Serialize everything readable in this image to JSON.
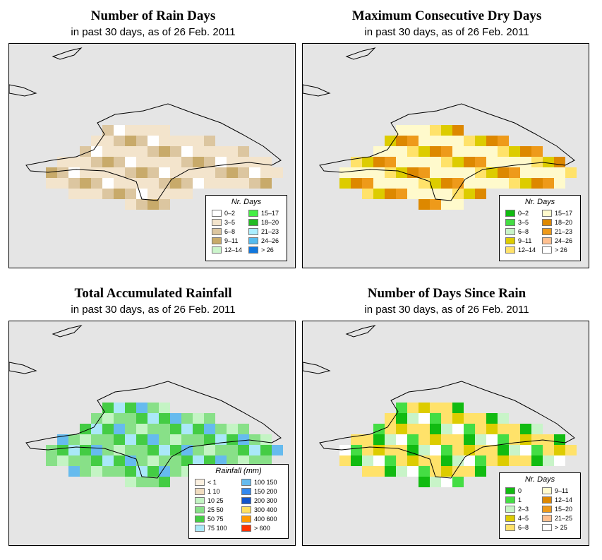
{
  "panels": [
    {
      "id": "rain-days",
      "title": "Number of Rain Days",
      "subtitle": "in past 30 days, as of  26 Feb. 2011",
      "legend_title": "Nr. Days",
      "legend": [
        {
          "label": "0–2",
          "color": "#ffffff"
        },
        {
          "label": "3–5",
          "color": "#f3e4cc"
        },
        {
          "label": "6–8",
          "color": "#dcc6a0"
        },
        {
          "label": "9–11",
          "color": "#c8aa6a"
        },
        {
          "label": "12–14",
          "color": "#ccf5cc"
        },
        {
          "label": "15–17",
          "color": "#44ee44"
        },
        {
          "label": "18–20",
          "color": "#22bb22"
        },
        {
          "label": "21–23",
          "color": "#aaeeff"
        },
        {
          "label": "24–26",
          "color": "#55bbee"
        },
        {
          "label": "> 26",
          "color": "#1177dd"
        }
      ]
    },
    {
      "id": "max-dry-days",
      "title": "Maximum Consecutive Dry Days",
      "subtitle": "in past 30 days, as of  26 Feb. 2011",
      "legend_title": "Nr. Days",
      "legend": [
        {
          "label": "0–2",
          "color": "#11bb11"
        },
        {
          "label": "3–5",
          "color": "#44dd44"
        },
        {
          "label": "6–8",
          "color": "#c8f4c8"
        },
        {
          "label": "9–11",
          "color": "#ddcc00"
        },
        {
          "label": "12–14",
          "color": "#ffe26a"
        },
        {
          "label": "15–17",
          "color": "#fffacc"
        },
        {
          "label": "18–20",
          "color": "#dd8800"
        },
        {
          "label": "21–23",
          "color": "#ee9a1a"
        },
        {
          "label": "24–26",
          "color": "#ffc090"
        },
        {
          "label": "> 26",
          "color": "#ffffff"
        }
      ]
    },
    {
      "id": "total-rainfall",
      "title": "Total Accumulated Rainfall",
      "subtitle": "in past 30 days, as of  26 Feb. 2011",
      "legend_title": "Rainfall (mm)",
      "legend": [
        {
          "label": "< 1",
          "color": "#fbf0e0"
        },
        {
          "label": "1   10",
          "color": "#f1ddc0"
        },
        {
          "label": "10   25",
          "color": "#c4f4c4"
        },
        {
          "label": "25   50",
          "color": "#88e088"
        },
        {
          "label": "50   75",
          "color": "#44cc44"
        },
        {
          "label": "75   100",
          "color": "#aae8f8"
        },
        {
          "label": "100   150",
          "color": "#66bbee"
        },
        {
          "label": "150   200",
          "color": "#3388ee"
        },
        {
          "label": "200   300",
          "color": "#1155cc"
        },
        {
          "label": "300   400",
          "color": "#ffe060"
        },
        {
          "label": "400   600",
          "color": "#ff9900"
        },
        {
          "label": "> 600",
          "color": "#ff3300"
        }
      ]
    },
    {
      "id": "days-since-rain",
      "title": "Number of Days Since Rain",
      "subtitle": "in past 30 days, as of  26 Feb. 2011",
      "legend_title": "Nr. Days",
      "legend": [
        {
          "label": "0",
          "color": "#11bb11"
        },
        {
          "label": "1",
          "color": "#44dd44"
        },
        {
          "label": "2–3",
          "color": "#c8f4c8"
        },
        {
          "label": "4–5",
          "color": "#ddcc00"
        },
        {
          "label": "6–8",
          "color": "#ffe26a"
        },
        {
          "label": "9–11",
          "color": "#fffacc"
        },
        {
          "label": "12–14",
          "color": "#dd8800"
        },
        {
          "label": "15–20",
          "color": "#ee9a1a"
        },
        {
          "label": "21–25",
          "color": "#ffc090"
        },
        {
          "label": "> 25",
          "color": "#ffffff"
        }
      ]
    }
  ]
}
